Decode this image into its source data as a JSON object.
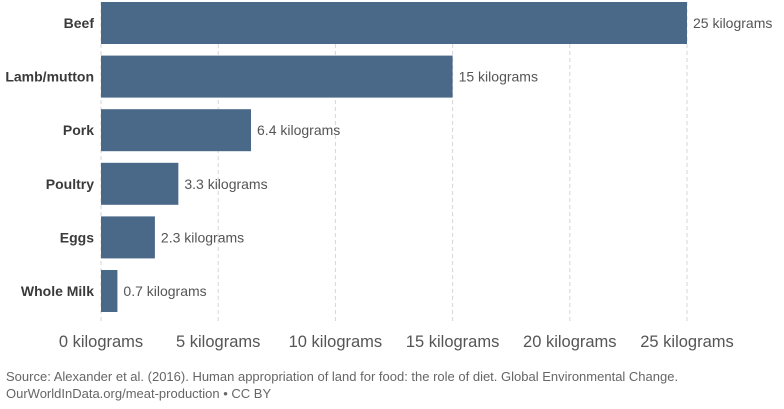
{
  "chart_data": {
    "type": "bar",
    "orientation": "horizontal",
    "categories": [
      "Beef",
      "Lamb/mutton",
      "Pork",
      "Poultry",
      "Eggs",
      "Whole Milk"
    ],
    "values": [
      25,
      15,
      6.4,
      3.3,
      2.3,
      0.7
    ],
    "value_labels": [
      "25 kilograms",
      "15 kilograms",
      "6.4 kilograms",
      "3.3 kilograms",
      "2.3 kilograms",
      "0.7 kilograms"
    ],
    "x_ticks": [
      {
        "value": 0,
        "label": "0 kilograms"
      },
      {
        "value": 5,
        "label": "5 kilograms"
      },
      {
        "value": 10,
        "label": "10 kilograms"
      },
      {
        "value": 15,
        "label": "15 kilograms"
      },
      {
        "value": 20,
        "label": "20 kilograms"
      },
      {
        "value": 25,
        "label": "25 kilograms"
      }
    ],
    "xlim": [
      0,
      25
    ],
    "grid": "vertical dashed",
    "bar_color": "#4a6988",
    "title": "",
    "xlabel": "",
    "ylabel": ""
  },
  "footer": {
    "source": "Source: Alexander et al. (2016). Human appropriation of land for food: the role of diet. Global Environmental Change.",
    "credit": "OurWorldInData.org/meat-production • CC BY"
  }
}
